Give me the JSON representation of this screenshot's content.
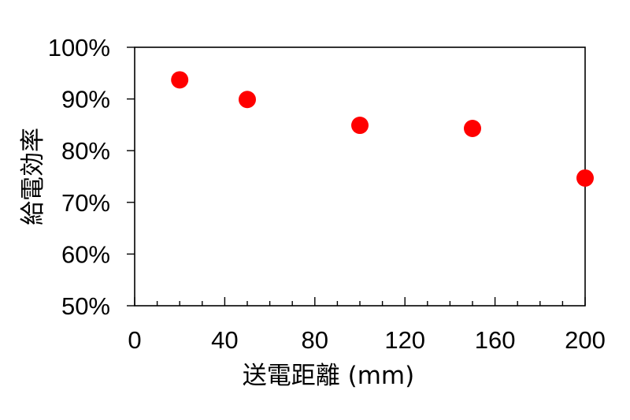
{
  "chart_data": {
    "type": "scatter",
    "title": "",
    "xlabel": "送電距離 (mm)",
    "ylabel": "給電効率",
    "xlim": [
      0,
      200
    ],
    "ylim": [
      0.5,
      1.0
    ],
    "xticks": [
      0,
      40,
      80,
      120,
      160,
      200
    ],
    "xtick_labels": [
      "0",
      "40",
      "80",
      "120",
      "160",
      "200"
    ],
    "x_minor_step": 10,
    "yticks": [
      0.5,
      0.6,
      0.7,
      0.8,
      0.9,
      1.0
    ],
    "ytick_labels": [
      "50%",
      "60%",
      "70%",
      "80%",
      "90%",
      "100%"
    ],
    "grid": false,
    "legend": "none",
    "marker_color": "#ff0000",
    "series": [
      {
        "x": [
          20,
          50,
          100,
          150,
          200
        ],
        "y": [
          0.937,
          0.899,
          0.849,
          0.843,
          0.747
        ]
      }
    ]
  }
}
